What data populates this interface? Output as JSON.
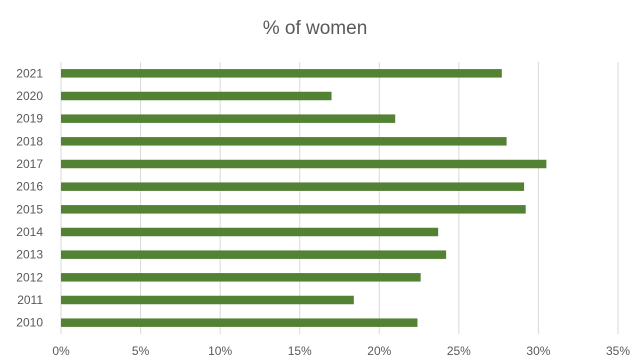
{
  "chart_data": {
    "type": "bar",
    "orientation": "horizontal",
    "title": "% of women",
    "xlabel": "",
    "ylabel": "",
    "categories": [
      "2021",
      "2020",
      "2019",
      "2018",
      "2017",
      "2016",
      "2015",
      "2014",
      "2013",
      "2012",
      "2011",
      "2010"
    ],
    "values": [
      27.7,
      17.0,
      21.0,
      28.0,
      30.5,
      29.1,
      29.2,
      23.7,
      24.2,
      22.6,
      18.4,
      22.4
    ],
    "xlim": [
      0,
      35
    ],
    "x_ticks": [
      "0%",
      "5%",
      "10%",
      "15%",
      "20%",
      "25%",
      "30%",
      "35%"
    ],
    "grid": "vertical",
    "legend": "none",
    "bar_color": "#548235",
    "grid_color": "#d9d9d9"
  }
}
